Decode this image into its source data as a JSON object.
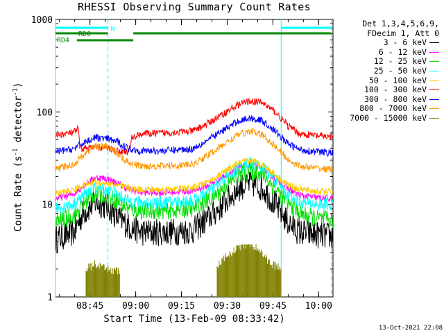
{
  "chart_data": {
    "type": "line",
    "title": "RHESSI Observing Summary Count Rates",
    "xlabel": "Start Time (13-Feb-09 08:33:42)",
    "ylabel": {
      "main": "Count Rate (s",
      "sup1": "-1",
      "mid": " detector",
      "sup2": "-1",
      "end": ")"
    },
    "yscale": "log",
    "ylim": [
      1,
      1000
    ],
    "yticks": [
      "1",
      "10",
      "100",
      "1000"
    ],
    "xlim_minutes": [
      0,
      91
    ],
    "xticks": [
      {
        "label": "08:45",
        "minute": 11.3
      },
      {
        "label": "09:00",
        "minute": 26.3
      },
      {
        "label": "09:15",
        "minute": 41.3
      },
      {
        "label": "09:30",
        "minute": 56.3
      },
      {
        "label": "09:45",
        "minute": 71.3
      },
      {
        "label": "10:00",
        "minute": 86.3
      }
    ],
    "legend": {
      "placement": "right",
      "header1": "Det 1,3,4,5,6,9,",
      "header2": "FDecim 1, Att 0"
    },
    "series": [
      {
        "name": "3 - 6 keV",
        "color": "#000000",
        "points": [
          [
            0,
            4.2
          ],
          [
            6,
            5.0
          ],
          [
            9,
            8.0
          ],
          [
            13,
            10.5
          ],
          [
            17,
            9.5
          ],
          [
            20,
            7.5
          ],
          [
            24,
            5.8
          ],
          [
            28,
            5.0
          ],
          [
            35,
            5.0
          ],
          [
            45,
            5.2
          ],
          [
            50,
            7.0
          ],
          [
            55,
            10.0
          ],
          [
            60,
            15.0
          ],
          [
            64,
            17.0
          ],
          [
            68,
            15.0
          ],
          [
            72,
            10.0
          ],
          [
            76,
            6.5
          ],
          [
            80,
            5.0
          ],
          [
            86,
            4.7
          ],
          [
            91,
            4.5
          ]
        ]
      },
      {
        "name": "6 - 12 keV",
        "color": "#ff00ff",
        "points": [
          [
            0,
            11.5
          ],
          [
            6,
            13.0
          ],
          [
            9,
            16.0
          ],
          [
            13,
            19.5
          ],
          [
            17,
            19.0
          ],
          [
            20,
            17.0
          ],
          [
            24,
            14.5
          ],
          [
            28,
            13.5
          ],
          [
            35,
            13.5
          ],
          [
            45,
            14.0
          ],
          [
            50,
            16.0
          ],
          [
            55,
            20.0
          ],
          [
            60,
            25.0
          ],
          [
            64,
            27.0
          ],
          [
            68,
            24.0
          ],
          [
            72,
            19.0
          ],
          [
            76,
            15.0
          ],
          [
            80,
            12.5
          ],
          [
            86,
            11.8
          ],
          [
            91,
            11.5
          ]
        ]
      },
      {
        "name": "12 - 25 keV",
        "color": "#00dd00",
        "points": [
          [
            0,
            6.5
          ],
          [
            6,
            7.5
          ],
          [
            9,
            10.0
          ],
          [
            13,
            13.0
          ],
          [
            17,
            12.5
          ],
          [
            20,
            11.0
          ],
          [
            24,
            9.0
          ],
          [
            28,
            8.5
          ],
          [
            35,
            8.5
          ],
          [
            45,
            9.0
          ],
          [
            50,
            11.0
          ],
          [
            55,
            15.0
          ],
          [
            60,
            21.0
          ],
          [
            64,
            23.5
          ],
          [
            68,
            21.0
          ],
          [
            72,
            15.0
          ],
          [
            76,
            10.5
          ],
          [
            80,
            8.0
          ],
          [
            86,
            7.0
          ],
          [
            91,
            6.8
          ]
        ]
      },
      {
        "name": "25 - 50 keV",
        "color": "#00ffff",
        "points": [
          [
            0,
            9.0
          ],
          [
            6,
            10.0
          ],
          [
            9,
            12.5
          ],
          [
            13,
            15.0
          ],
          [
            17,
            14.5
          ],
          [
            20,
            13.0
          ],
          [
            24,
            11.0
          ],
          [
            28,
            10.5
          ],
          [
            35,
            10.5
          ],
          [
            45,
            11.0
          ],
          [
            50,
            13.5
          ],
          [
            55,
            18.0
          ],
          [
            60,
            25.0
          ],
          [
            64,
            28.0
          ],
          [
            68,
            25.0
          ],
          [
            72,
            18.5
          ],
          [
            76,
            13.0
          ],
          [
            80,
            10.5
          ],
          [
            86,
            10.0
          ],
          [
            91,
            9.8
          ]
        ]
      },
      {
        "name": "50 - 100 keV",
        "color": "#ffcc00",
        "points": [
          [
            0,
            13.0
          ],
          [
            6,
            14.5
          ],
          [
            9,
            16.0
          ],
          [
            13,
            17.5
          ],
          [
            17,
            17.0
          ],
          [
            20,
            16.0
          ],
          [
            24,
            15.0
          ],
          [
            28,
            14.5
          ],
          [
            35,
            14.5
          ],
          [
            45,
            15.0
          ],
          [
            50,
            17.5
          ],
          [
            55,
            22.0
          ],
          [
            60,
            28.0
          ],
          [
            64,
            30.0
          ],
          [
            68,
            27.0
          ],
          [
            72,
            21.0
          ],
          [
            76,
            16.5
          ],
          [
            80,
            14.5
          ],
          [
            86,
            13.8
          ],
          [
            91,
            13.5
          ]
        ]
      },
      {
        "name": "100 - 300 keV",
        "color": "#ff0000",
        "points": [
          [
            0,
            56
          ],
          [
            6,
            60
          ],
          [
            7.5,
            66
          ],
          [
            8,
            40
          ],
          [
            12,
            41
          ],
          [
            17,
            41
          ],
          [
            20,
            38
          ],
          [
            24,
            37
          ],
          [
            25,
            52
          ],
          [
            28,
            58
          ],
          [
            35,
            59
          ],
          [
            45,
            62
          ],
          [
            50,
            75
          ],
          [
            55,
            95
          ],
          [
            60,
            120
          ],
          [
            64,
            132
          ],
          [
            68,
            125
          ],
          [
            72,
            100
          ],
          [
            76,
            72
          ],
          [
            80,
            58
          ],
          [
            86,
            55
          ],
          [
            91,
            54
          ]
        ]
      },
      {
        "name": "300 - 800 keV",
        "color": "#0000ff",
        "points": [
          [
            0,
            37
          ],
          [
            6,
            40
          ],
          [
            9,
            46
          ],
          [
            13,
            53
          ],
          [
            17,
            51
          ],
          [
            20,
            48
          ],
          [
            24,
            40
          ],
          [
            28,
            38
          ],
          [
            35,
            38
          ],
          [
            45,
            40
          ],
          [
            50,
            50
          ],
          [
            55,
            63
          ],
          [
            60,
            80
          ],
          [
            64,
            86
          ],
          [
            68,
            80
          ],
          [
            72,
            62
          ],
          [
            76,
            46
          ],
          [
            80,
            39
          ],
          [
            86,
            37
          ],
          [
            91,
            36
          ]
        ]
      },
      {
        "name": "800 - 7000 keV",
        "color": "#ff9900",
        "points": [
          [
            0,
            24
          ],
          [
            6,
            27
          ],
          [
            9,
            34
          ],
          [
            13,
            43
          ],
          [
            17,
            42
          ],
          [
            20,
            36
          ],
          [
            24,
            28
          ],
          [
            28,
            26
          ],
          [
            35,
            26
          ],
          [
            45,
            27
          ],
          [
            50,
            34
          ],
          [
            55,
            44
          ],
          [
            60,
            57
          ],
          [
            64,
            62
          ],
          [
            68,
            56
          ],
          [
            72,
            43
          ],
          [
            76,
            31
          ],
          [
            80,
            26
          ],
          [
            86,
            24.5
          ],
          [
            91,
            24
          ]
        ]
      },
      {
        "name": "7000 - 15000 keV",
        "color": "#808000",
        "note": "sparse bursts",
        "points": [
          [
            10,
            1.8
          ],
          [
            13,
            2.0
          ],
          [
            16,
            1.8
          ],
          [
            20,
            1.7
          ],
          [
            53,
            1.9
          ],
          [
            57,
            2.6
          ],
          [
            61,
            3.2
          ],
          [
            64,
            3.4
          ],
          [
            67,
            2.8
          ],
          [
            71,
            2.0
          ],
          [
            75,
            1.8
          ]
        ]
      }
    ],
    "markers": [
      {
        "kind": "vline",
        "color": "#00ffff",
        "minute": 0,
        "style": "solid"
      },
      {
        "kind": "vline",
        "color": "#00ffff",
        "minute": 17.2,
        "style": "dashed"
      },
      {
        "kind": "vline",
        "color": "#00ffff",
        "minute": 74.0,
        "style": "solid"
      },
      {
        "kind": "vline",
        "color": "#00ffff",
        "minute": 90.5,
        "style": "dashed"
      }
    ],
    "bars": [
      {
        "label": "N",
        "color": "#00ffff",
        "start": 0,
        "end": 17.2,
        "row": 0
      },
      {
        "label": "",
        "color": "#00ffff",
        "start": 74.0,
        "end": 90.5,
        "row": 0
      },
      {
        "label": "RD0",
        "color": "#008800",
        "start": 0,
        "end": 17.2,
        "row": 1
      },
      {
        "label": "",
        "color": "#008800",
        "start": 25.5,
        "end": 90.5,
        "row": 1
      },
      {
        "label": "RD4",
        "color": "#008800",
        "start": 7.0,
        "end": 25.5,
        "row": 2
      }
    ]
  },
  "footer": "13-Oct-2021 22:08"
}
